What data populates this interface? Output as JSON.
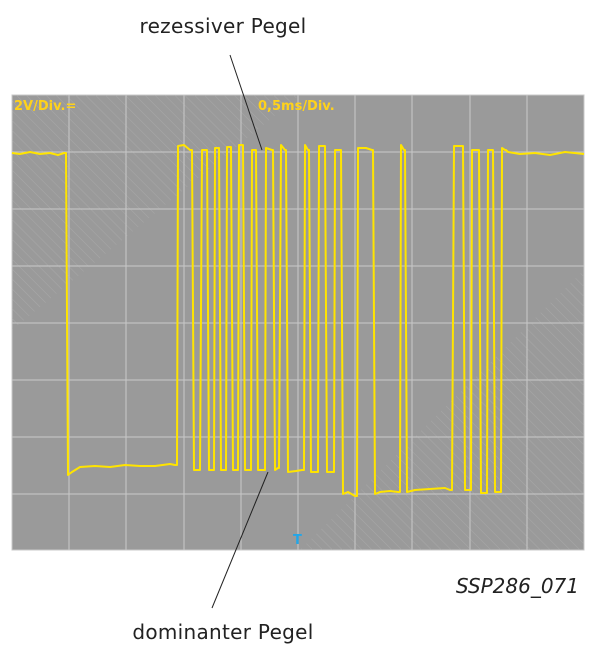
{
  "labels": {
    "recessive": "rezessiver Pegel",
    "dominant": "dominanter Pegel",
    "figure_id": "SSP286_071"
  },
  "scope": {
    "volt_div": "2V/Div.=",
    "time_div": "0,5ms/Div.",
    "trigger_marker": "T",
    "colors": {
      "screen": "#9a9a9a",
      "grid": "#c9c9c9",
      "trace": "#ffe400",
      "label": "#ffd21a",
      "trigger": "#22a6e8"
    }
  }
}
